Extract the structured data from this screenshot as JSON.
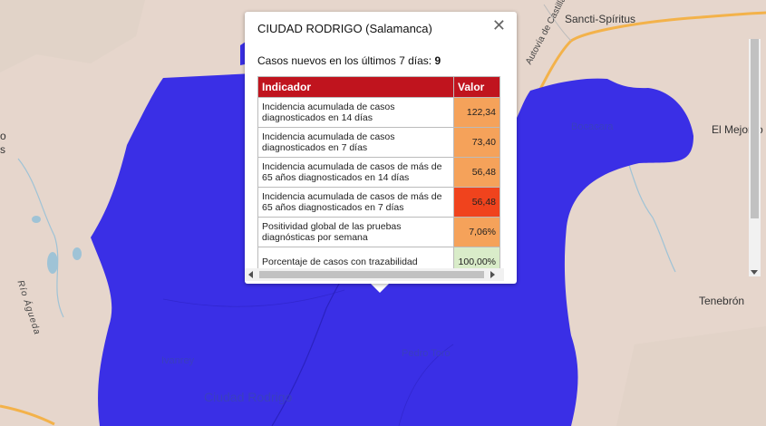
{
  "map": {
    "region_color": "#3a2fe6",
    "labels": {
      "sancti_spiritus": "Sancti-Spíritus",
      "autovia": "Autovía de Castilla",
      "bocacara": "Bocacara",
      "el_mejorito": "El Mejorito",
      "tenebron": "Tenebrón",
      "ivanrey": "Ivanrey",
      "pedro_toro": "Pedro Toro",
      "ciudad_rodrigo": "Ciudad Rodrigo",
      "rio_agueda": "Río Águeda",
      "left_edge_o": "o",
      "left_edge_s": "s"
    }
  },
  "popup": {
    "title": "CIUDAD RODRIGO (Salamanca)",
    "new_cases_label": "Casos nuevos en los últimos 7 días:",
    "new_cases_value": "9",
    "close_icon": "close-icon",
    "table": {
      "headers": [
        "Indicador",
        "Valor"
      ],
      "rows": [
        {
          "indicator": "Incidencia acumulada de casos diagnosticados en 14 días",
          "value": "122,34",
          "color": "#f5a25a"
        },
        {
          "indicator": "Incidencia acumulada de casos diagnosticados en 7 días",
          "value": "73,40",
          "color": "#f5a25a"
        },
        {
          "indicator": "Incidencia acumulada de casos de más de 65 años diagnosticados en 14 días",
          "value": "56,48",
          "color": "#f5a25a"
        },
        {
          "indicator": "Incidencia acumulada de casos de más de 65 años diagnosticados en 7 días",
          "value": "56,48",
          "color": "#f0431d"
        },
        {
          "indicator": "Positividad global de las pruebas diagnósticas por semana",
          "value": "7,06%",
          "color": "#f5a25a"
        },
        {
          "indicator": "Porcentaje de casos con trazabilidad",
          "value": "100,00%",
          "color": "#d9ecc9"
        }
      ]
    }
  }
}
